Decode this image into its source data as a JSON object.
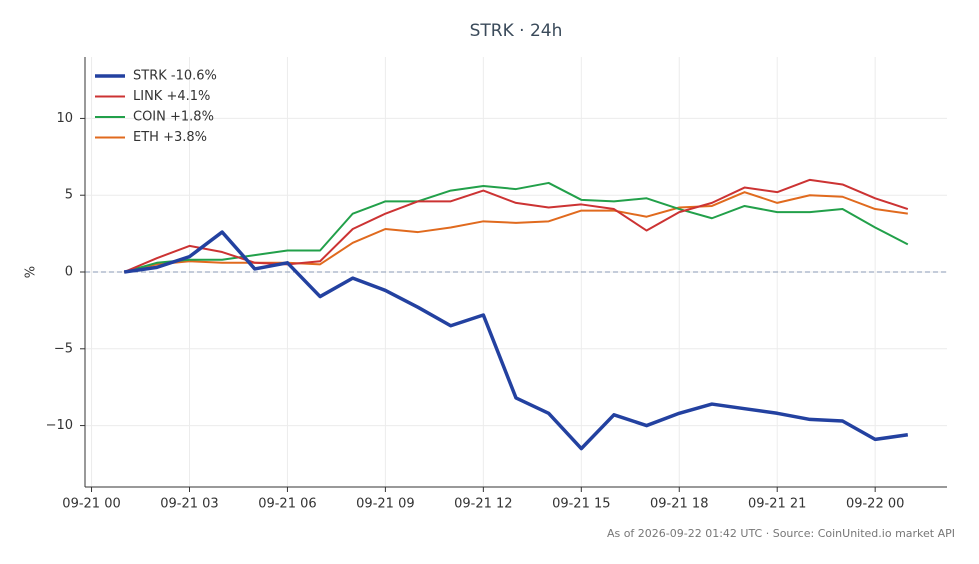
{
  "chart_data": {
    "type": "line",
    "title": "STRK · 24h",
    "ylabel": "%",
    "footnote": "As of 2026-09-22 01:42 UTC · Source: CoinUnited.io market API",
    "x": [
      1,
      2,
      3,
      4,
      5,
      6,
      7,
      8,
      9,
      10,
      11,
      12,
      13,
      14,
      15,
      16,
      17,
      18,
      19,
      20,
      21,
      22,
      23,
      24,
      25
    ],
    "xlim": [
      -0.2,
      26.2
    ],
    "xticks": [
      {
        "value": 0,
        "label": "09-21 00"
      },
      {
        "value": 3,
        "label": "09-21 03"
      },
      {
        "value": 6,
        "label": "09-21 06"
      },
      {
        "value": 9,
        "label": "09-21 09"
      },
      {
        "value": 12,
        "label": "09-21 12"
      },
      {
        "value": 15,
        "label": "09-21 15"
      },
      {
        "value": 18,
        "label": "09-21 18"
      },
      {
        "value": 21,
        "label": "09-21 21"
      },
      {
        "value": 24,
        "label": "09-22 00"
      }
    ],
    "ylim": [
      -14,
      14
    ],
    "yticks": [
      {
        "value": -10,
        "label": "−10"
      },
      {
        "value": -5,
        "label": "−5"
      },
      0,
      5,
      10
    ],
    "grid": true,
    "legend": "upper left",
    "series": [
      {
        "name": "STRK -10.6%",
        "color": "#2341a0",
        "width": 3.5,
        "values": [
          0,
          0.3,
          1.0,
          2.6,
          0.2,
          0.6,
          -1.6,
          -0.4,
          -1.2,
          -2.3,
          -3.5,
          -2.8,
          -8.2,
          -9.2,
          -11.5,
          -9.3,
          -10.0,
          -9.2,
          -8.6,
          -8.9,
          -9.2,
          -9.6,
          -9.7,
          -10.9,
          -10.6
        ]
      },
      {
        "name": "LINK +4.1%",
        "color": "#cc3333",
        "width": 2,
        "values": [
          0,
          0.9,
          1.7,
          1.3,
          0.6,
          0.5,
          0.7,
          2.8,
          3.8,
          4.6,
          4.6,
          5.3,
          4.5,
          4.2,
          4.4,
          4.1,
          2.7,
          3.9,
          4.5,
          5.5,
          5.2,
          6.0,
          5.7,
          4.8,
          4.1
        ]
      },
      {
        "name": "COIN +1.8%",
        "color": "#22a04a",
        "width": 2,
        "values": [
          0,
          0.6,
          0.8,
          0.8,
          1.1,
          1.4,
          1.4,
          3.8,
          4.6,
          4.6,
          5.3,
          5.6,
          5.4,
          5.8,
          4.7,
          4.6,
          4.8,
          4.1,
          3.5,
          4.3,
          3.9,
          3.9,
          4.1,
          2.9,
          1.8
        ]
      },
      {
        "name": "ETH +3.8%",
        "color": "#e06a1e",
        "width": 2,
        "values": [
          0,
          0.5,
          0.7,
          0.6,
          0.6,
          0.6,
          0.5,
          1.9,
          2.8,
          2.6,
          2.9,
          3.3,
          3.2,
          3.3,
          4.0,
          4.0,
          3.6,
          4.2,
          4.3,
          5.2,
          4.5,
          5.0,
          4.9,
          4.1,
          3.8
        ]
      }
    ]
  }
}
